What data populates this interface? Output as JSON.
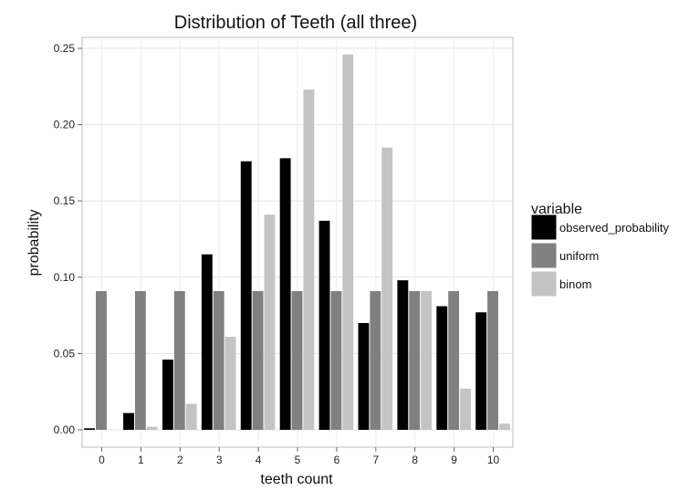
{
  "chart_data": {
    "type": "bar",
    "title": "Distribution of Teeth (all three)",
    "xlabel": "teeth count",
    "ylabel": "probability",
    "categories": [
      "0",
      "1",
      "2",
      "3",
      "4",
      "5",
      "6",
      "7",
      "8",
      "9",
      "10"
    ],
    "ylim": [
      0,
      0.25
    ],
    "yticks": [
      0.0,
      0.05,
      0.1,
      0.15,
      0.2,
      0.25
    ],
    "ytick_labels": [
      "0.00",
      "0.05",
      "0.10",
      "0.15",
      "0.20",
      "0.25"
    ],
    "grid": true,
    "legend": {
      "title": "variable",
      "placement": "right"
    },
    "series": [
      {
        "name": "observed_probability",
        "color": "#000000",
        "values": [
          0.001,
          0.011,
          0.046,
          0.115,
          0.176,
          0.178,
          0.137,
          0.07,
          0.098,
          0.081,
          0.077
        ]
      },
      {
        "name": "uniform",
        "color": "#808080",
        "values": [
          0.0909,
          0.0909,
          0.0909,
          0.0909,
          0.0909,
          0.0909,
          0.0909,
          0.0909,
          0.0909,
          0.0909,
          0.0909
        ]
      },
      {
        "name": "binom",
        "color": "#c4c4c4",
        "values": [
          0.0,
          0.002,
          0.017,
          0.061,
          0.141,
          0.223,
          0.246,
          0.185,
          0.091,
          0.027,
          0.004
        ]
      }
    ]
  }
}
